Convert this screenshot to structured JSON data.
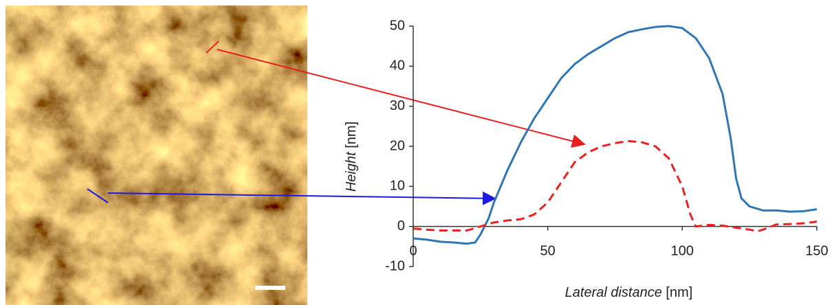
{
  "chart_data": {
    "type": "line",
    "xlabel": {
      "name": "Lateral distance",
      "unit": "[nm]"
    },
    "ylabel": {
      "name": "Height",
      "unit": "[nm]"
    },
    "xlim": [
      0,
      150
    ],
    "xticks": [
      0,
      50,
      100,
      150
    ],
    "ylim": [
      -10,
      50
    ],
    "yticks": [
      -10,
      0,
      10,
      20,
      30,
      40,
      50
    ],
    "series": [
      {
        "color": "#2e75b6",
        "dash": false,
        "x": [
          0,
          5,
          10,
          15,
          20,
          23,
          25,
          28,
          30,
          35,
          40,
          45,
          50,
          55,
          60,
          65,
          70,
          75,
          80,
          85,
          90,
          95,
          100,
          105,
          110,
          115,
          118,
          120,
          122,
          125,
          130,
          135,
          140,
          145,
          150
        ],
        "values": [
          -3,
          -3.3,
          -3.8,
          -4,
          -4.3,
          -4,
          -2,
          2,
          6,
          14,
          21,
          27,
          32,
          37,
          40.5,
          43,
          45,
          47,
          48.5,
          49.2,
          49.8,
          50,
          49.5,
          47,
          42,
          33,
          22,
          12,
          7,
          5,
          4,
          4,
          3.7,
          3.8,
          4.3
        ]
      },
      {
        "color": "#e8201e",
        "dash": true,
        "x": [
          0,
          5,
          10,
          15,
          20,
          25,
          30,
          35,
          40,
          45,
          50,
          55,
          60,
          65,
          70,
          75,
          80,
          85,
          90,
          95,
          100,
          103,
          105,
          110,
          115,
          120,
          125,
          128,
          130,
          135,
          140,
          145,
          150
        ],
        "values": [
          -0.5,
          -0.8,
          -1,
          -1,
          -1,
          0,
          1,
          1.5,
          1.8,
          3,
          6,
          11,
          16,
          18.5,
          20,
          20.8,
          21.3,
          21,
          20,
          17,
          10,
          3,
          0,
          0.4,
          0.2,
          -0.3,
          -0.8,
          -1.2,
          -0.8,
          0.5,
          0.6,
          0.8,
          1.2
        ]
      }
    ]
  }
}
